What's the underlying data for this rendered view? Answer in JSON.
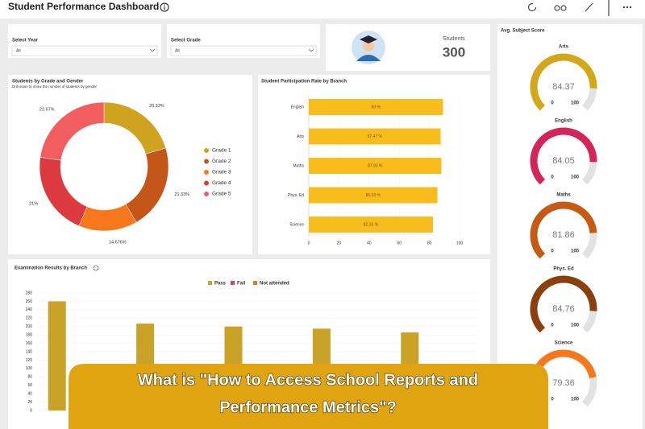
{
  "header": {
    "title": "Student Performance Dashboard"
  },
  "filters": [
    {
      "label": "Select Year",
      "value": "All"
    },
    {
      "label": "Select Grade",
      "value": "All"
    }
  ],
  "students": {
    "label": "Students",
    "value": 300
  },
  "grade_chart": {
    "type": "pie",
    "title": "Students by Grade and Gender",
    "subtitle": "Drill down to show the number of students by gender",
    "categories": [
      "Grade 1",
      "Grade 2",
      "Grade 3",
      "Grade 4",
      "Grade 5"
    ],
    "values": [
      20.33,
      21.33,
      14.676,
      21,
      22.67
    ],
    "value_labels": [
      "20.33%",
      "21.33%",
      "14.676%",
      "21%",
      "22.67%"
    ],
    "colors": [
      "#cfa21f",
      "#c4561a",
      "#f7781c",
      "#dd3a3f",
      "#f25d5f"
    ]
  },
  "participation_chart": {
    "type": "bar",
    "title": "Student Participation Rate by Branch",
    "categories": [
      "English",
      "Arts",
      "Maths",
      "Phys. Ed",
      "Science"
    ],
    "values": [
      89,
      87.47,
      87.93,
      85.33,
      82.33
    ],
    "value_labels": [
      "89 %",
      "87.47 %",
      "87.93 %",
      "85.33 %",
      "82.33 %"
    ],
    "color": "#f8bc1c",
    "xlim": [
      0,
      100
    ],
    "xticks": [
      0,
      20,
      40,
      60,
      80,
      100
    ]
  },
  "exam_chart": {
    "type": "bar",
    "title": "Examination Results by Branch",
    "series": [
      {
        "name": "Pass",
        "color": "#c9a227",
        "values": [
          260,
          207,
          200,
          195,
          186
        ]
      },
      {
        "name": "Fail",
        "color": "#d6445a",
        "values": [
          null,
          null,
          null,
          null,
          null
        ]
      },
      {
        "name": "Not attended",
        "color": "#e07a1f",
        "values": [
          null,
          null,
          null,
          null,
          null
        ]
      }
    ],
    "ylim": [
      0,
      280
    ],
    "yticks": [
      0,
      20,
      40,
      60,
      80,
      100,
      120,
      140,
      160,
      180,
      200,
      220,
      240,
      260,
      280
    ],
    "grid": true
  },
  "gauges": {
    "title": "Avg. Subject Score",
    "range": [
      0,
      100
    ],
    "items": [
      {
        "name": "Arts",
        "value": 84.37,
        "color": "#d4a61a"
      },
      {
        "name": "English",
        "value": 84.05,
        "color": "#d4245a"
      },
      {
        "name": "Maths",
        "value": 81.86,
        "color": "#c65a12"
      },
      {
        "name": "Phys. Ed",
        "value": 84.76,
        "color": "#8a400c"
      },
      {
        "name": "Science",
        "value": 79.36,
        "color": "#f7781c"
      }
    ]
  },
  "banner": {
    "lines": [
      "What is \"How to Access School Reports and",
      "Performance Metrics\"?"
    ]
  }
}
